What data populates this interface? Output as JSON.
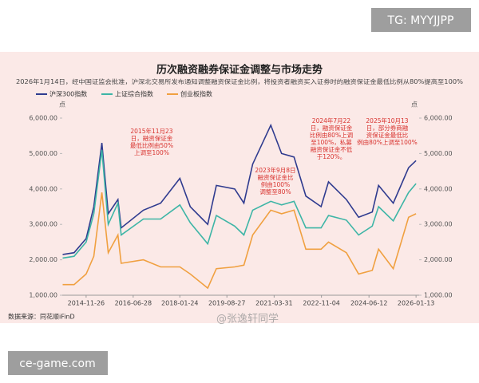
{
  "overlays": {
    "top_right": "TG: MYYJJPP",
    "bottom_left": "ce-game.com",
    "watermark": "@张逸轩同学"
  },
  "chart_data": {
    "type": "line",
    "title": "历次融资融券保证金调整与市场走势",
    "subtitle": "2026年1月14日，经中国证监会批准，沪深北交易所发布通知调整融资保证金比例，将投资者融资买入证券时的融资保证金最低比例从80%提高至100%",
    "y_unit": "点",
    "y2_unit": "点",
    "source": "数据来源：同花顺iFinD",
    "x": [
      "2014-02-10",
      "2014-07-01",
      "2014-11-26",
      "2015-03-01",
      "2015-06-08",
      "2015-08-26",
      "2015-12-23",
      "2016-02-01",
      "2016-11-01",
      "2017-06-01",
      "2018-01-24",
      "2018-06-01",
      "2019-01-03",
      "2019-04-19",
      "2019-12-01",
      "2020-03-23",
      "2020-07-10",
      "2021-02-18",
      "2021-07-01",
      "2021-12-01",
      "2022-04-26",
      "2022-10-31",
      "2023-01-30",
      "2023-09-08",
      "2024-02-05",
      "2024-07-22",
      "2024-10-08",
      "2025-04-07",
      "2025-10-13",
      "2026-01-13"
    ],
    "xlim": [
      "2014-02-05",
      "2026-02-20"
    ],
    "xticks": [
      "2014-11-26",
      "2016-06-28",
      "2018-01-24",
      "2019-08-27",
      "2021-03-31",
      "2022-11-04",
      "2024-06-12",
      "2026-01-13"
    ],
    "ylim": [
      1000,
      6000
    ],
    "yticks": [
      {
        "value": 1000,
        "label": "1,000.00"
      },
      {
        "value": 2000,
        "label": "2,000.00"
      },
      {
        "value": 3000,
        "label": "3,000.00"
      },
      {
        "value": 4000,
        "label": "4,000.00"
      },
      {
        "value": 5000,
        "label": "5,000.00"
      },
      {
        "value": 6000,
        "label": "6,000.00"
      }
    ],
    "y2lim": [
      1000,
      6000
    ],
    "y2ticks": [
      {
        "value": 1000,
        "label": "1,000.00"
      },
      {
        "value": 2000,
        "label": "2,000.00"
      },
      {
        "value": 3000,
        "label": "3,000.00"
      },
      {
        "value": 4000,
        "label": "4,000.00"
      },
      {
        "value": 5000,
        "label": "5,000.00"
      },
      {
        "value": 6000,
        "label": "6,000.00"
      }
    ],
    "series": [
      {
        "name": "沪深300指数",
        "color": "#2f3b8f",
        "values": [
          2150,
          2200,
          2600,
          3500,
          5300,
          3300,
          3700,
          2900,
          3400,
          3600,
          4300,
          3500,
          3000,
          4100,
          4000,
          3600,
          4700,
          5800,
          5000,
          4900,
          3800,
          3500,
          4200,
          3700,
          3200,
          3350,
          4100,
          3600,
          4600,
          4800
        ]
      },
      {
        "name": "上证综合指数",
        "color": "#3db5a6",
        "values": [
          2050,
          2100,
          2500,
          3300,
          5100,
          3000,
          3600,
          2700,
          3150,
          3150,
          3550,
          3050,
          2450,
          3250,
          2950,
          2700,
          3400,
          3650,
          3550,
          3650,
          2900,
          2900,
          3250,
          3120,
          2700,
          2950,
          3500,
          3100,
          3900,
          4150
        ]
      },
      {
        "name": "创业板指数",
        "color": "#f0a040",
        "values": [
          1300,
          1300,
          1600,
          2100,
          3900,
          2200,
          2700,
          1900,
          2000,
          1800,
          1800,
          1600,
          1200,
          1750,
          1800,
          1850,
          2700,
          3400,
          3300,
          3400,
          2300,
          2300,
          2500,
          2200,
          1600,
          1700,
          2300,
          1750,
          3200,
          3300
        ]
      }
    ],
    "annotations": [
      [
        "2015年11月23",
        "日，融资保证金",
        "最低比例由50%",
        "上调至100%"
      ],
      [
        "2023年9月8日",
        "融资保证金比",
        "例由100%",
        "调整至80%"
      ],
      [
        "2024年7月22",
        "日，融资保证金",
        "比例由80%上调",
        "至100%，私募",
        "融资保证金不低",
        "于120%。"
      ],
      [
        "2025年10月13",
        "日，部分券商融",
        "资保证金最低比",
        "例由80%上调至100%"
      ]
    ]
  }
}
